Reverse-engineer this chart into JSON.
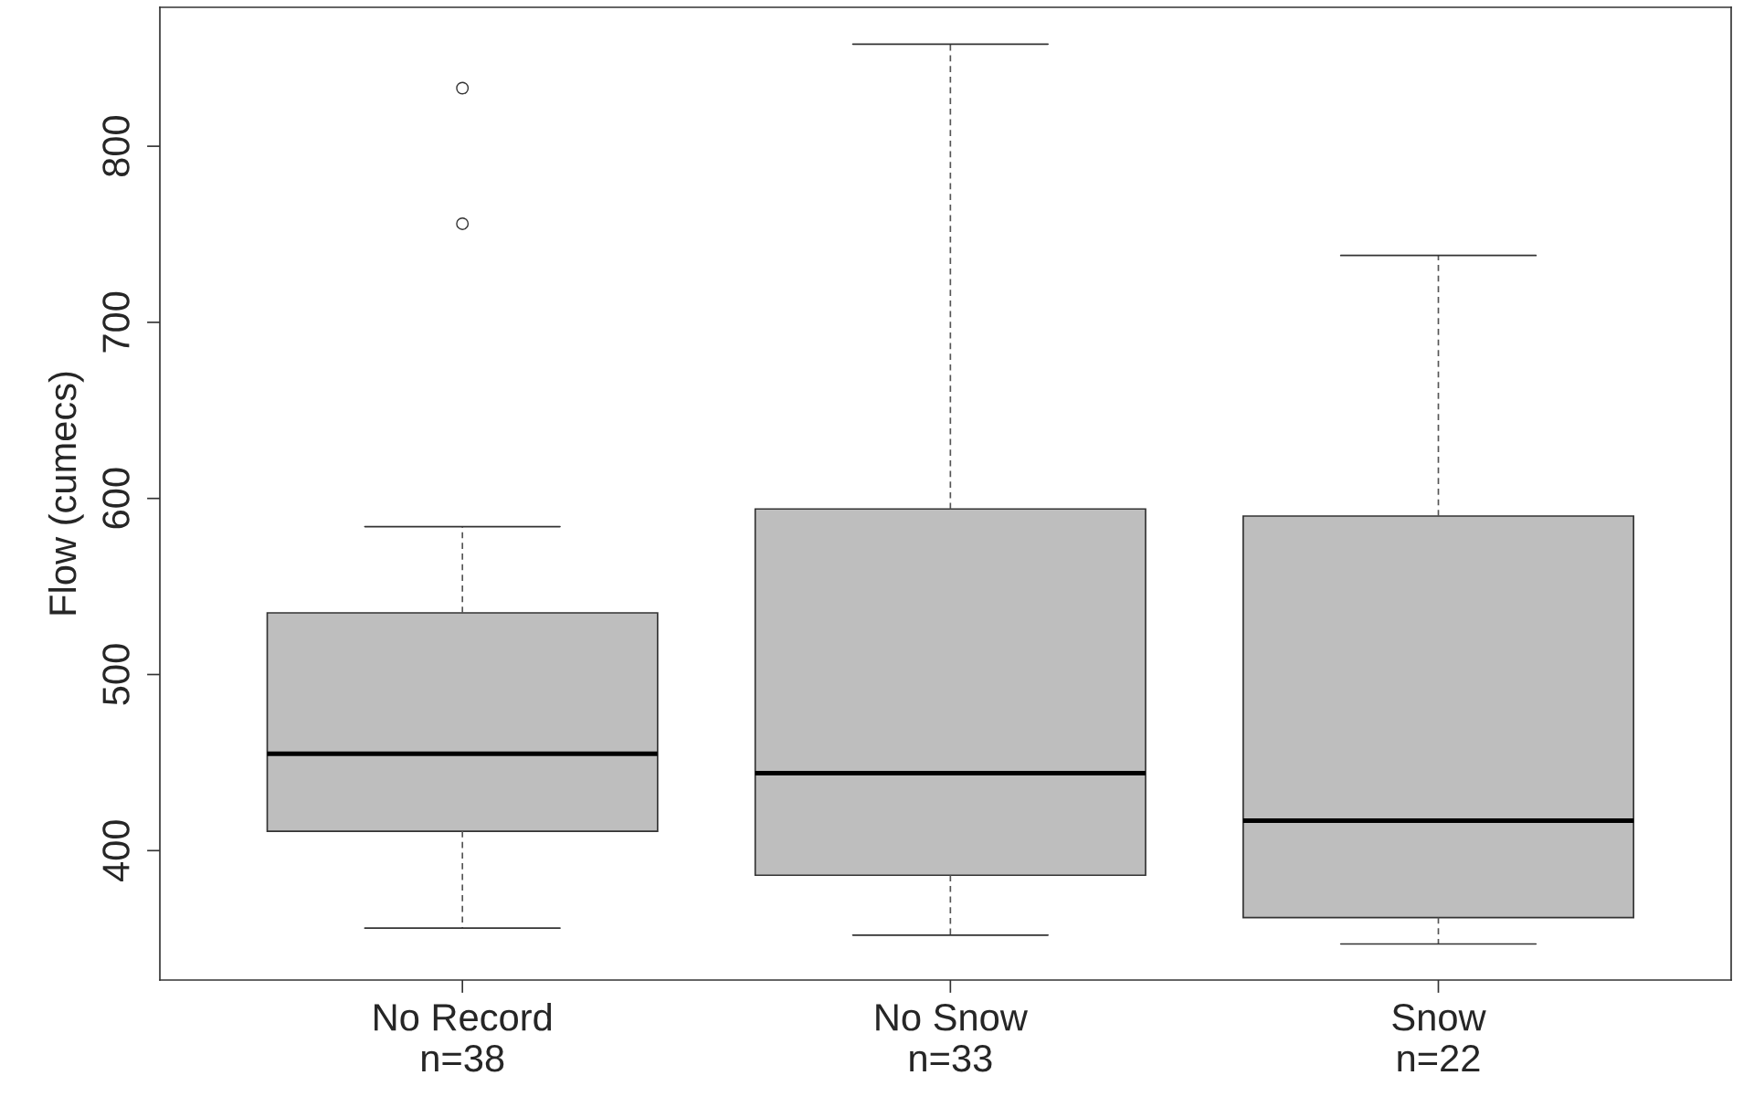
{
  "chart_data": {
    "type": "box",
    "ylabel": "Flow (cumecs)",
    "categories": [
      "No Record\nn=38",
      "No Snow\nn=33",
      "Snow\nn=22"
    ],
    "series": [
      {
        "color": "#bebebe",
        "boxes": [
          {
            "low": 356,
            "q1": 411,
            "median": 455,
            "q3": 535,
            "high": 584,
            "outliers": [
              756,
              833
            ]
          },
          {
            "low": 352,
            "q1": 386,
            "median": 444,
            "q3": 594,
            "high": 858
          },
          {
            "low": 347,
            "q1": 362,
            "median": 417,
            "q3": 590,
            "high": 738
          }
        ]
      }
    ],
    "ylim": [
      326.5,
      878.9
    ],
    "yticks": [
      400,
      500,
      600,
      700,
      800
    ],
    "grid": false
  }
}
